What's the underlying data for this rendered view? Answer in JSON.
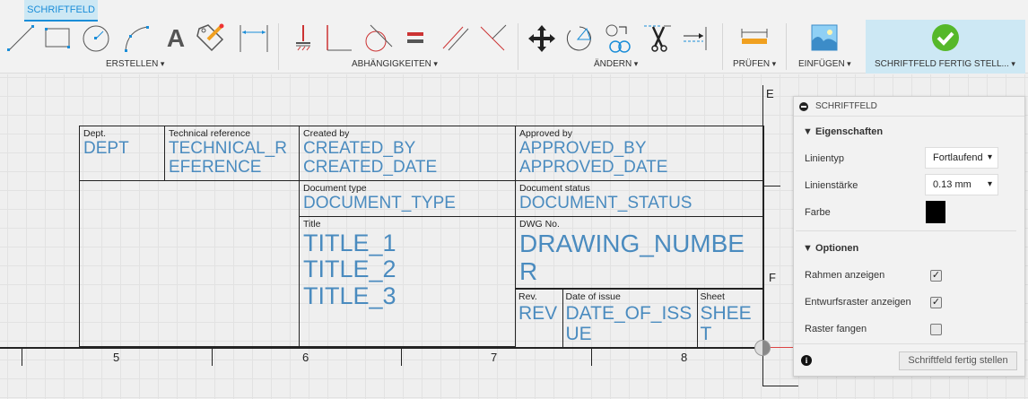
{
  "toolbar": {
    "tab": "SCHRIFTFELD",
    "groups": {
      "create": "ERSTELLEN",
      "constraints": "ABHÄNGIGKEITEN",
      "modify": "ÄNDERN",
      "inspect": "PRÜFEN",
      "insert": "EINFÜGEN",
      "finish": "SCHRIFTFELD FERTIG STELL..."
    },
    "accent": "#1a8dd8"
  },
  "title_block": {
    "labels": {
      "dept": "Dept.",
      "tech_ref": "Technical reference",
      "created_by": "Created by",
      "approved_by": "Approved by",
      "doc_type": "Document type",
      "doc_status": "Document status",
      "title": "Title",
      "dwg_no": "DWG No.",
      "rev": "Rev.",
      "date_issue": "Date of issue",
      "sheet": "Sheet"
    },
    "values": {
      "dept": "DEPT",
      "tech_ref": "TECHNICAL_REFERENCE",
      "created_by": "CREATED_BY",
      "created_date": "CREATED_DATE",
      "approved_by": "APPROVED_BY",
      "approved_date": "APPROVED_DATE",
      "doc_type": "DOCUMENT_TYPE",
      "doc_status": "DOCUMENT_STATUS",
      "title_1": "TITLE_1",
      "title_2": "TITLE_2",
      "title_3": "TITLE_3",
      "dwg_no": "DRAWING_NUMBER",
      "rev": "REV",
      "date_issue": "DATE_OF_ISSUE",
      "sheet": "SHEET"
    },
    "value_color": "#4a8bbf"
  },
  "border": {
    "columns": [
      "5",
      "6",
      "7",
      "8"
    ],
    "rows": [
      "E",
      "F"
    ]
  },
  "panel": {
    "title": "SCHRIFTFELD",
    "properties": {
      "heading": "Eigenschaften",
      "line_type_label": "Linientyp",
      "line_type": "Fortlaufend",
      "line_weight_label": "Linienstärke",
      "line_weight": "0.13 mm",
      "color_label": "Farbe",
      "color": "#000000"
    },
    "options": {
      "heading": "Optionen",
      "show_frame": "Rahmen anzeigen",
      "show_frame_checked": true,
      "show_grid": "Entwurfsraster anzeigen",
      "show_grid_checked": true,
      "snap_grid": "Raster fangen",
      "snap_grid_checked": false
    },
    "finish_button": "Schriftfeld fertig stellen"
  }
}
